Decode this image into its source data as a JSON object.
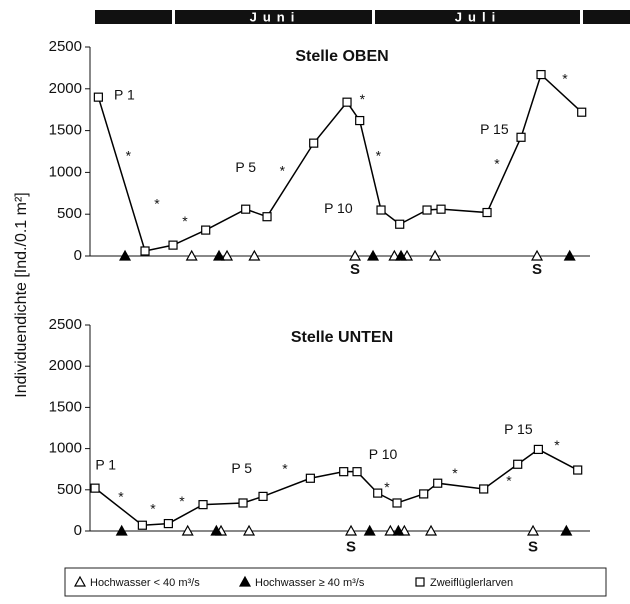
{
  "months": [
    "Juni",
    "Juli"
  ],
  "y_label": "Individuendichte [Ind./0.1 m²]",
  "chart_data": [
    {
      "type": "line",
      "title": "Stelle OBEN",
      "xlim": [
        -12.5,
        62.5
      ],
      "ylim": [
        0,
        2500
      ],
      "yticks": [
        0,
        500,
        1000,
        1500,
        2000,
        2500
      ],
      "series": [
        {
          "name": "Hochwasser < 40 m³/s",
          "color": "#000000",
          "marker": "triangle-open",
          "x": [
            2.5,
            7.8,
            11.9,
            27,
            32.9,
            34.8,
            39,
            54.3
          ],
          "values": [
            0,
            0,
            0,
            0,
            0,
            0,
            0,
            0
          ]
        },
        {
          "name": "Hochwasser ≥ 40 m³/s",
          "color": "#000000",
          "marker": "triangle-filled",
          "x": [
            -7.5,
            6.6,
            29.7,
            33.9,
            59.2
          ],
          "values": [
            0,
            0,
            0,
            0,
            0
          ]
        },
        {
          "name": "Zweiflüglerlarven",
          "color": "#000000",
          "marker": "square-open",
          "line": true,
          "x": [
            -11.5,
            -4.5,
            -0.3,
            4.6,
            10.6,
            13.8,
            20.8,
            25.8,
            27.7,
            30.9,
            33.7,
            37.8,
            39.9,
            46.8,
            51.9,
            54.9,
            61
          ],
          "values": [
            1900,
            60,
            130,
            310,
            560,
            470,
            1350,
            1840,
            1620,
            550,
            380,
            550,
            560,
            520,
            1420,
            2170,
            1720
          ]
        }
      ],
      "annotations": [
        {
          "text": "P 1",
          "x": -7.6,
          "y": 1915
        },
        {
          "text": "P 5",
          "x": 10.6,
          "y": 1050
        },
        {
          "text": "P 10",
          "x": 24.5,
          "y": 560
        },
        {
          "text": "P 15",
          "x": 47.9,
          "y": 1505
        },
        {
          "text": "*",
          "x": -7,
          "y": 1185
        },
        {
          "text": "*",
          "x": -2.7,
          "y": 610
        },
        {
          "text": "*",
          "x": 1.5,
          "y": 405
        },
        {
          "text": "*",
          "x": 16.1,
          "y": 1005
        },
        {
          "text": "*",
          "x": 28.1,
          "y": 1865
        },
        {
          "text": "*",
          "x": 30.5,
          "y": 1185
        },
        {
          "text": "*",
          "x": 48.3,
          "y": 1090
        },
        {
          "text": "*",
          "x": 58.5,
          "y": 2105
        },
        {
          "text": "S",
          "x": 27,
          "y": -170
        },
        {
          "text": "S",
          "x": 54.3,
          "y": -170
        }
      ]
    },
    {
      "type": "line",
      "title": "Stelle UNTEN",
      "xlim": [
        -12.5,
        62.5
      ],
      "ylim": [
        0,
        2500
      ],
      "yticks": [
        0,
        500,
        1000,
        1500,
        2000,
        2500
      ],
      "series": [
        {
          "name": "Hochwasser < 40 m³/s",
          "color": "#000000",
          "marker": "triangle-open",
          "x": [
            1.9,
            6.9,
            11.1,
            26.4,
            32.3,
            34.4,
            38.4,
            53.7
          ],
          "values": [
            0,
            0,
            0,
            0,
            0,
            0,
            0,
            0
          ]
        },
        {
          "name": "Hochwasser ≥ 40 m³/s",
          "color": "#000000",
          "marker": "triangle-filled",
          "x": [
            -8,
            6.2,
            29.2,
            33.5,
            58.7
          ],
          "values": [
            0,
            0,
            0,
            0,
            0
          ]
        },
        {
          "name": "Zweiflüglerlarven",
          "color": "#000000",
          "marker": "square-open",
          "line": true,
          "x": [
            -12,
            -4.9,
            -1,
            4.2,
            10.2,
            13.2,
            20.3,
            25.3,
            27.3,
            30.4,
            33.3,
            37.3,
            39.4,
            46.3,
            51.4,
            54.5,
            60.4
          ],
          "values": [
            520,
            70,
            90,
            320,
            340,
            420,
            640,
            720,
            720,
            460,
            340,
            450,
            580,
            510,
            810,
            990,
            740
          ]
        }
      ],
      "annotations": [
        {
          "text": "P 1",
          "x": -10.4,
          "y": 790
        },
        {
          "text": "P 5",
          "x": 10,
          "y": 750
        },
        {
          "text": "P 10",
          "x": 31.2,
          "y": 920
        },
        {
          "text": "P 15",
          "x": 51.5,
          "y": 1225
        },
        {
          "text": "*",
          "x": -8.1,
          "y": 400
        },
        {
          "text": "*",
          "x": -3.3,
          "y": 255
        },
        {
          "text": "*",
          "x": 1.05,
          "y": 350
        },
        {
          "text": "*",
          "x": 16.5,
          "y": 740
        },
        {
          "text": "*",
          "x": 31.8,
          "y": 520
        },
        {
          "text": "*",
          "x": 42,
          "y": 690
        },
        {
          "text": "*",
          "x": 50.1,
          "y": 595
        },
        {
          "text": "*",
          "x": 57.3,
          "y": 1030
        },
        {
          "text": "S",
          "x": 26.4,
          "y": -200
        },
        {
          "text": "S",
          "x": 53.7,
          "y": -200
        }
      ]
    }
  ]
}
